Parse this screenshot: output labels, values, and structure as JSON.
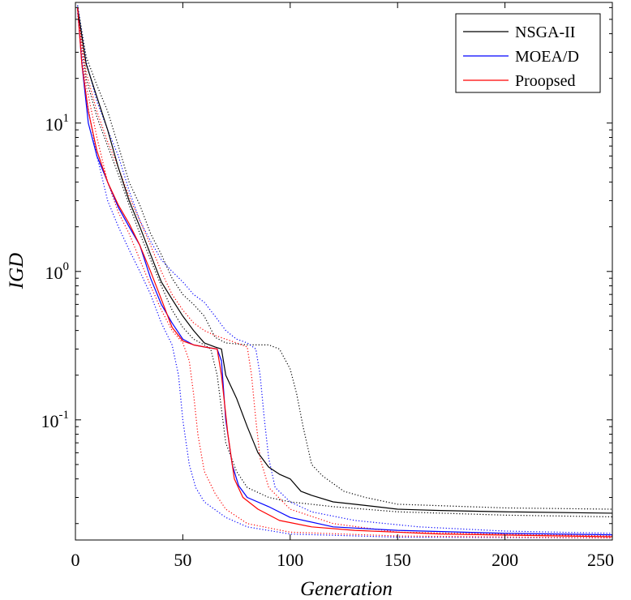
{
  "chart_data": {
    "type": "line",
    "title": "",
    "xlabel": "Generation",
    "ylabel": "IGD",
    "xlim": [
      0,
      250
    ],
    "ylim": [
      0.0155,
      65
    ],
    "yscale": "log",
    "grid": false,
    "legend_position": "top-right",
    "x_ticks": [
      0,
      50,
      100,
      150,
      200,
      250
    ],
    "x_tick_labels": [
      "0",
      "50",
      "100",
      "150",
      "200",
      "250"
    ],
    "y_ticks": [
      {
        "value": 0.1,
        "base": "10",
        "exp": "-1"
      },
      {
        "value": 1,
        "base": "10",
        "exp": "0"
      },
      {
        "value": 10,
        "base": "10",
        "exp": "1"
      }
    ],
    "series": [
      {
        "name": "NSGA-II",
        "color": "#000000",
        "style": "solid",
        "show_in_legend": true,
        "points": [
          [
            1,
            60
          ],
          [
            5,
            25
          ],
          [
            10,
            15
          ],
          [
            15,
            9
          ],
          [
            20,
            5
          ],
          [
            25,
            3
          ],
          [
            30,
            2
          ],
          [
            35,
            1.3
          ],
          [
            40,
            0.85
          ],
          [
            45,
            0.65
          ],
          [
            50,
            0.5
          ],
          [
            55,
            0.4
          ],
          [
            60,
            0.33
          ],
          [
            65,
            0.31
          ],
          [
            68,
            0.3
          ],
          [
            70,
            0.2
          ],
          [
            75,
            0.14
          ],
          [
            80,
            0.09
          ],
          [
            85,
            0.06
          ],
          [
            90,
            0.048
          ],
          [
            95,
            0.043
          ],
          [
            100,
            0.04
          ],
          [
            105,
            0.033
          ],
          [
            110,
            0.031
          ],
          [
            120,
            0.028
          ],
          [
            130,
            0.027
          ],
          [
            140,
            0.026
          ],
          [
            150,
            0.025
          ],
          [
            170,
            0.0245
          ],
          [
            200,
            0.024
          ],
          [
            250,
            0.0235
          ]
        ]
      },
      {
        "name": "MOEA/D",
        "color": "#0000ff",
        "style": "solid",
        "show_in_legend": true,
        "points": [
          [
            1,
            60
          ],
          [
            3,
            25
          ],
          [
            6,
            10
          ],
          [
            10,
            6
          ],
          [
            15,
            4
          ],
          [
            20,
            2.7
          ],
          [
            25,
            2
          ],
          [
            30,
            1.5
          ],
          [
            35,
            0.9
          ],
          [
            40,
            0.6
          ],
          [
            45,
            0.45
          ],
          [
            50,
            0.35
          ],
          [
            55,
            0.32
          ],
          [
            60,
            0.31
          ],
          [
            66,
            0.3
          ],
          [
            68,
            0.25
          ],
          [
            70,
            0.1
          ],
          [
            73,
            0.05
          ],
          [
            76,
            0.036
          ],
          [
            80,
            0.03
          ],
          [
            90,
            0.026
          ],
          [
            100,
            0.022
          ],
          [
            120,
            0.019
          ],
          [
            150,
            0.018
          ],
          [
            200,
            0.0172
          ],
          [
            250,
            0.0168
          ]
        ]
      },
      {
        "name": "Proopsed",
        "color": "#ff0000",
        "style": "solid",
        "show_in_legend": true,
        "points": [
          [
            1,
            60
          ],
          [
            3,
            25
          ],
          [
            6,
            12
          ],
          [
            10,
            6.5
          ],
          [
            15,
            4
          ],
          [
            20,
            2.8
          ],
          [
            25,
            2.1
          ],
          [
            30,
            1.5
          ],
          [
            35,
            1.0
          ],
          [
            40,
            0.65
          ],
          [
            45,
            0.42
          ],
          [
            50,
            0.34
          ],
          [
            55,
            0.32
          ],
          [
            60,
            0.31
          ],
          [
            66,
            0.3
          ],
          [
            68,
            0.2
          ],
          [
            71,
            0.08
          ],
          [
            74,
            0.04
          ],
          [
            78,
            0.03
          ],
          [
            85,
            0.025
          ],
          [
            95,
            0.021
          ],
          [
            110,
            0.019
          ],
          [
            130,
            0.018
          ],
          [
            170,
            0.017
          ],
          [
            250,
            0.0163
          ]
        ]
      },
      {
        "name": "",
        "color": "#000000",
        "style": "dotted",
        "show_in_legend": false,
        "points": [
          [
            1,
            62
          ],
          [
            5,
            28
          ],
          [
            10,
            18
          ],
          [
            15,
            12
          ],
          [
            20,
            7
          ],
          [
            25,
            4
          ],
          [
            30,
            2.8
          ],
          [
            35,
            1.8
          ],
          [
            40,
            1.3
          ],
          [
            45,
            0.9
          ],
          [
            50,
            0.7
          ],
          [
            55,
            0.6
          ],
          [
            60,
            0.5
          ],
          [
            65,
            0.36
          ],
          [
            70,
            0.33
          ],
          [
            80,
            0.32
          ],
          [
            90,
            0.32
          ],
          [
            95,
            0.3
          ],
          [
            100,
            0.22
          ],
          [
            103,
            0.15
          ],
          [
            106,
            0.09
          ],
          [
            110,
            0.05
          ],
          [
            115,
            0.042
          ],
          [
            125,
            0.033
          ],
          [
            135,
            0.03
          ],
          [
            150,
            0.027
          ],
          [
            200,
            0.0255
          ],
          [
            250,
            0.025
          ]
        ]
      },
      {
        "name": "",
        "color": "#000000",
        "style": "dotted",
        "show_in_legend": false,
        "points": [
          [
            1,
            58
          ],
          [
            5,
            20
          ],
          [
            10,
            11
          ],
          [
            15,
            7
          ],
          [
            20,
            4.5
          ],
          [
            25,
            2.8
          ],
          [
            30,
            1.8
          ],
          [
            35,
            1.2
          ],
          [
            40,
            0.8
          ],
          [
            45,
            0.55
          ],
          [
            50,
            0.42
          ],
          [
            55,
            0.35
          ],
          [
            60,
            0.32
          ],
          [
            63,
            0.3
          ],
          [
            66,
            0.2
          ],
          [
            70,
            0.07
          ],
          [
            75,
            0.045
          ],
          [
            80,
            0.035
          ],
          [
            90,
            0.03
          ],
          [
            100,
            0.028
          ],
          [
            120,
            0.026
          ],
          [
            150,
            0.024
          ],
          [
            200,
            0.0228
          ],
          [
            250,
            0.0222
          ]
        ]
      },
      {
        "name": "",
        "color": "#0000ff",
        "style": "dotted",
        "show_in_legend": false,
        "points": [
          [
            1,
            62
          ],
          [
            5,
            26
          ],
          [
            10,
            14
          ],
          [
            15,
            9
          ],
          [
            20,
            6
          ],
          [
            25,
            3.5
          ],
          [
            30,
            2.2
          ],
          [
            35,
            1.6
          ],
          [
            40,
            1.2
          ],
          [
            45,
            1.0
          ],
          [
            50,
            0.85
          ],
          [
            55,
            0.7
          ],
          [
            60,
            0.62
          ],
          [
            65,
            0.5
          ],
          [
            70,
            0.4
          ],
          [
            75,
            0.35
          ],
          [
            80,
            0.33
          ],
          [
            84,
            0.3
          ],
          [
            86,
            0.2
          ],
          [
            88,
            0.1
          ],
          [
            90,
            0.055
          ],
          [
            93,
            0.035
          ],
          [
            100,
            0.028
          ],
          [
            110,
            0.024
          ],
          [
            130,
            0.021
          ],
          [
            160,
            0.019
          ],
          [
            200,
            0.0178
          ],
          [
            250,
            0.0172
          ]
        ]
      },
      {
        "name": "",
        "color": "#0000ff",
        "style": "dotted",
        "show_in_legend": false,
        "points": [
          [
            1,
            55
          ],
          [
            5,
            15
          ],
          [
            10,
            6
          ],
          [
            15,
            3
          ],
          [
            20,
            2
          ],
          [
            25,
            1.4
          ],
          [
            30,
            1.0
          ],
          [
            35,
            0.7
          ],
          [
            40,
            0.45
          ],
          [
            45,
            0.32
          ],
          [
            48,
            0.2
          ],
          [
            50,
            0.1
          ],
          [
            53,
            0.05
          ],
          [
            56,
            0.035
          ],
          [
            60,
            0.028
          ],
          [
            70,
            0.022
          ],
          [
            80,
            0.019
          ],
          [
            100,
            0.017
          ],
          [
            150,
            0.0162
          ],
          [
            250,
            0.016
          ]
        ]
      },
      {
        "name": "",
        "color": "#ff0000",
        "style": "dotted",
        "show_in_legend": false,
        "points": [
          [
            1,
            60
          ],
          [
            5,
            22
          ],
          [
            10,
            12
          ],
          [
            15,
            7.5
          ],
          [
            20,
            5
          ],
          [
            25,
            3.2
          ],
          [
            30,
            2.2
          ],
          [
            35,
            1.5
          ],
          [
            40,
            1.0
          ],
          [
            45,
            0.7
          ],
          [
            50,
            0.55
          ],
          [
            55,
            0.45
          ],
          [
            60,
            0.4
          ],
          [
            65,
            0.37
          ],
          [
            70,
            0.35
          ],
          [
            75,
            0.33
          ],
          [
            80,
            0.31
          ],
          [
            82,
            0.2
          ],
          [
            84,
            0.1
          ],
          [
            86,
            0.055
          ],
          [
            90,
            0.035
          ],
          [
            100,
            0.025
          ],
          [
            120,
            0.02
          ],
          [
            150,
            0.0175
          ],
          [
            250,
            0.0165
          ]
        ]
      },
      {
        "name": "",
        "color": "#ff0000",
        "style": "dotted",
        "show_in_legend": false,
        "points": [
          [
            1,
            58
          ],
          [
            5,
            18
          ],
          [
            10,
            8
          ],
          [
            15,
            4
          ],
          [
            20,
            2.5
          ],
          [
            25,
            1.8
          ],
          [
            30,
            1.2
          ],
          [
            35,
            0.8
          ],
          [
            40,
            0.55
          ],
          [
            45,
            0.4
          ],
          [
            50,
            0.33
          ],
          [
            53,
            0.25
          ],
          [
            55,
            0.15
          ],
          [
            57,
            0.08
          ],
          [
            60,
            0.045
          ],
          [
            65,
            0.032
          ],
          [
            70,
            0.025
          ],
          [
            80,
            0.02
          ],
          [
            100,
            0.0175
          ],
          [
            150,
            0.0165
          ],
          [
            250,
            0.016
          ]
        ]
      }
    ]
  }
}
